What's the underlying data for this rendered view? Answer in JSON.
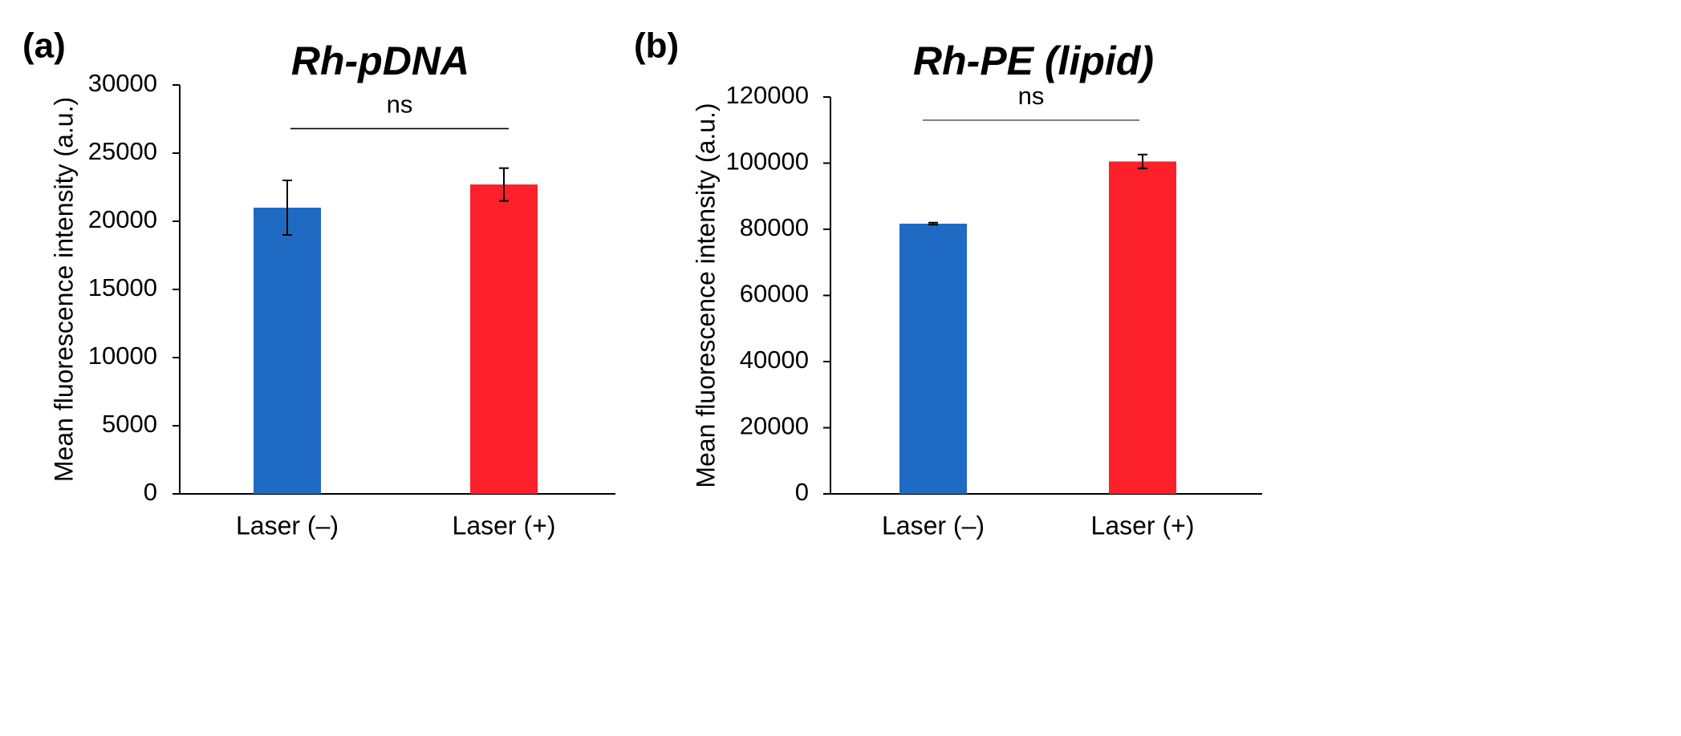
{
  "chart_data": [
    {
      "type": "bar",
      "panel_label": "(a)",
      "title": "Rh-pDNA",
      "xlabel": "",
      "ylabel": "Mean fluorescence intensity (a.u.)",
      "ylim": [
        0,
        30000
      ],
      "yticks": [
        0,
        5000,
        10000,
        15000,
        20000,
        25000,
        30000
      ],
      "categories": [
        "Laser (–)",
        "Laser (+)"
      ],
      "values": [
        21000,
        22700
      ],
      "errors": [
        2000,
        1200
      ],
      "colors": [
        "#1f6bc3",
        "#fb2029"
      ],
      "significance": {
        "label": "ns",
        "y": 26800
      },
      "grid": false,
      "legend": "none"
    },
    {
      "type": "bar",
      "panel_label": "(b)",
      "title": "Rh-PE (lipid)",
      "xlabel": "",
      "ylabel": "Mean fluorescence intensity (a.u.)",
      "ylim": [
        0,
        120000
      ],
      "yticks": [
        0,
        20000,
        40000,
        60000,
        80000,
        100000,
        120000
      ],
      "categories": [
        "Laser (–)",
        "Laser (+)"
      ],
      "values": [
        81700,
        100500
      ],
      "errors": [
        300,
        2100
      ],
      "colors": [
        "#1f6bc3",
        "#fb2029"
      ],
      "significance": {
        "label": "ns",
        "y": 113000
      },
      "grid": false,
      "legend": "none"
    }
  ]
}
